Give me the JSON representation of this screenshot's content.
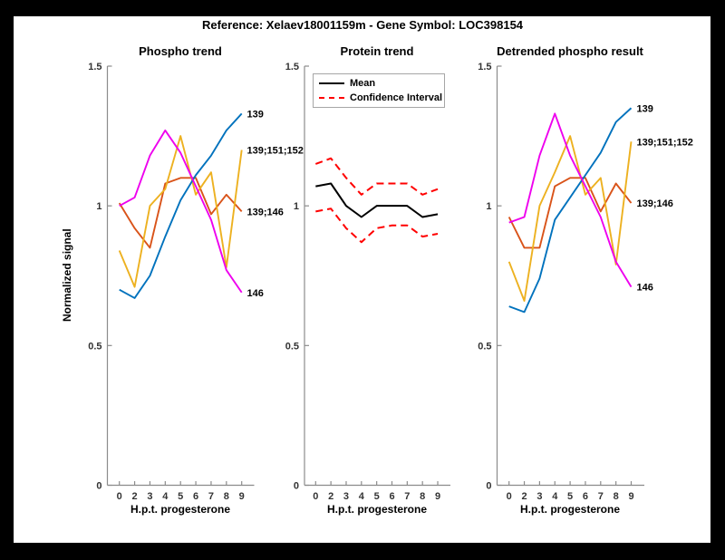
{
  "title": "Reference:  Xelaev18001159m - Gene Symbol:  LOC398154",
  "axes": {
    "ylabel": "Normalized signal",
    "xlabel": "H.p.t. progesterone",
    "y_tick_labels": [
      "0",
      "0.5",
      "1",
      "1.5"
    ],
    "y_ticks": [
      0,
      0.5,
      1,
      1.5
    ],
    "ylim": [
      0,
      1.5
    ]
  },
  "legend": {
    "items": [
      {
        "label": "Mean",
        "color": "#000000",
        "dashed": false
      },
      {
        "label": "Confidence Interval",
        "color": "#FF0000",
        "dashed": true
      }
    ]
  },
  "colors": {
    "blue": "#0072BD",
    "orange": "#D95319",
    "yellow": "#EDB120",
    "magenta": "#EE00EE",
    "mean": "#000000",
    "confidence": "#FF0000",
    "axis": "#8C8C8C",
    "tick_text": "#333333"
  },
  "chart_data": [
    {
      "type": "line",
      "title": "Phospho trend",
      "categories": [
        "0",
        "2",
        "3",
        "4",
        "5",
        "6",
        "7",
        "8",
        "9"
      ],
      "ylim": [
        0,
        1.5
      ],
      "annotated": true,
      "series": [
        {
          "name": "139;146",
          "color": "#D95319",
          "dashed": false,
          "label": "139;146",
          "values": [
            1.01,
            0.92,
            0.85,
            1.08,
            1.1,
            1.1,
            0.97,
            1.04,
            0.98
          ]
        },
        {
          "name": "139;151;152",
          "color": "#EDB120",
          "dashed": false,
          "label": "139;151;152",
          "values": [
            0.84,
            0.71,
            1.0,
            1.06,
            1.25,
            1.04,
            1.12,
            0.78,
            1.2
          ]
        },
        {
          "name": "139",
          "color": "#0072BD",
          "dashed": false,
          "label": "139",
          "values": [
            0.7,
            0.67,
            0.75,
            0.89,
            1.02,
            1.11,
            1.18,
            1.27,
            1.33
          ]
        },
        {
          "name": "146",
          "color": "#EE00EE",
          "dashed": false,
          "label": "146",
          "values": [
            1.0,
            1.03,
            1.18,
            1.27,
            1.19,
            1.07,
            0.95,
            0.77,
            0.69
          ]
        }
      ]
    },
    {
      "type": "line",
      "title": "Protein trend",
      "categories": [
        "0",
        "2",
        "3",
        "4",
        "5",
        "6",
        "7",
        "8",
        "9"
      ],
      "ylim": [
        0,
        1.5
      ],
      "annotated": false,
      "series": [
        {
          "name": "Confidence Interval upper",
          "color": "#FF0000",
          "dashed": true,
          "label": "",
          "values": [
            1.15,
            1.17,
            1.1,
            1.04,
            1.08,
            1.08,
            1.08,
            1.04,
            1.06
          ]
        },
        {
          "name": "Confidence Interval lower",
          "color": "#FF0000",
          "dashed": true,
          "label": "",
          "values": [
            0.98,
            0.99,
            0.92,
            0.87,
            0.92,
            0.93,
            0.93,
            0.89,
            0.9
          ]
        },
        {
          "name": "Mean",
          "color": "#000000",
          "dashed": false,
          "label": "",
          "values": [
            1.07,
            1.08,
            1.0,
            0.96,
            1.0,
            1.0,
            1.0,
            0.96,
            0.97
          ]
        }
      ]
    },
    {
      "type": "line",
      "title": "Detrended phospho result",
      "categories": [
        "0",
        "2",
        "3",
        "4",
        "5",
        "6",
        "7",
        "8",
        "9"
      ],
      "ylim": [
        0,
        1.5
      ],
      "annotated": true,
      "series": [
        {
          "name": "139;146",
          "color": "#D95319",
          "dashed": false,
          "label": "139;146",
          "values": [
            0.96,
            0.85,
            0.85,
            1.07,
            1.1,
            1.1,
            0.98,
            1.08,
            1.01
          ]
        },
        {
          "name": "139;151;152",
          "color": "#EDB120",
          "dashed": false,
          "label": "139;151;152",
          "values": [
            0.8,
            0.66,
            1.0,
            1.12,
            1.25,
            1.04,
            1.1,
            0.79,
            1.23
          ]
        },
        {
          "name": "139",
          "color": "#0072BD",
          "dashed": false,
          "label": "139",
          "values": [
            0.64,
            0.62,
            0.74,
            0.95,
            1.03,
            1.11,
            1.19,
            1.3,
            1.35
          ]
        },
        {
          "name": "146",
          "color": "#EE00EE",
          "dashed": false,
          "label": "146",
          "values": [
            0.94,
            0.96,
            1.18,
            1.33,
            1.18,
            1.07,
            0.96,
            0.8,
            0.71
          ]
        }
      ]
    }
  ]
}
